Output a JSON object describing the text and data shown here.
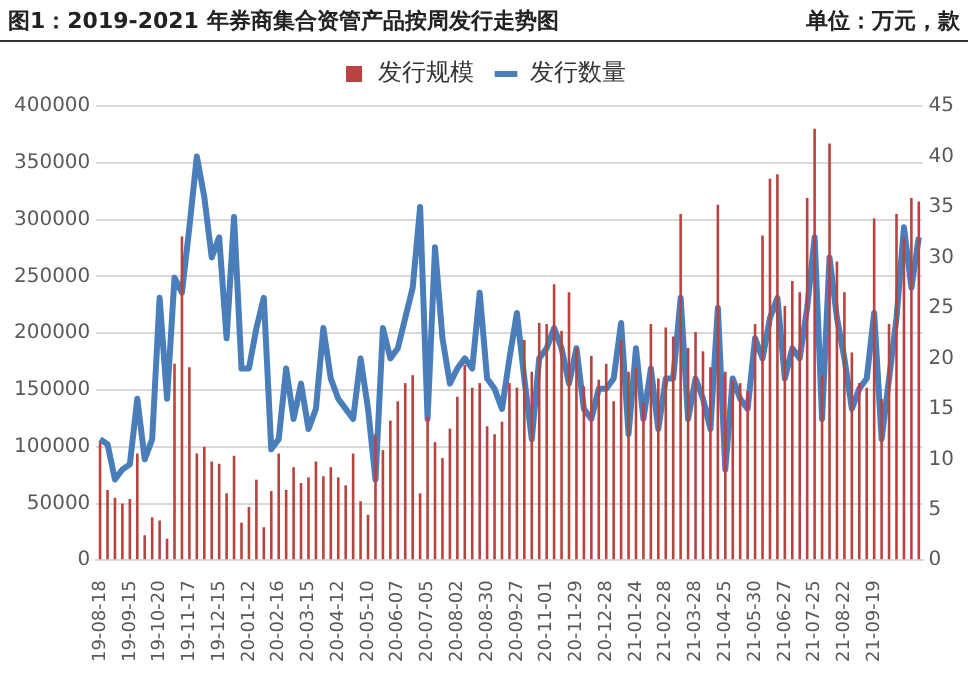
{
  "chart_data": {
    "type": "bar",
    "title": "图1：2019-2021 年券商集合资管产品按周发行走势图",
    "subtitle": "单位：万元，款",
    "categories": [
      "19-08-18",
      null,
      null,
      null,
      "19-09-15",
      null,
      null,
      null,
      "19-10-20",
      null,
      null,
      null,
      "19-11-17",
      null,
      null,
      null,
      "19-12-15",
      null,
      null,
      null,
      "20-01-12",
      null,
      null,
      null,
      "20-02-16",
      null,
      null,
      null,
      "20-03-15",
      null,
      null,
      null,
      "20-04-12",
      null,
      null,
      null,
      "20-05-10",
      null,
      null,
      null,
      "20-06-07",
      null,
      null,
      null,
      "20-07-05",
      null,
      null,
      null,
      "20-08-02",
      null,
      null,
      null,
      "20-08-30",
      null,
      null,
      null,
      "20-09-27",
      null,
      null,
      null,
      "20-11-01",
      null,
      null,
      null,
      "20-11-29",
      null,
      null,
      null,
      "20-12-28",
      null,
      null,
      null,
      "21-01-24",
      null,
      null,
      null,
      "21-02-28",
      null,
      null,
      null,
      "21-03-28",
      null,
      null,
      null,
      "21-04-25",
      null,
      null,
      null,
      "21-05-30",
      null,
      null,
      null,
      "21-06-27",
      null,
      null,
      null,
      "21-07-25",
      null,
      null,
      null,
      "21-08-22",
      null,
      null,
      null,
      "21-09-19",
      null,
      null,
      null,
      null,
      null,
      null
    ],
    "series": [
      {
        "name": "发行规模",
        "type": "bar",
        "color": "#b8433f",
        "values": [
          104000,
          62000,
          55000,
          50000,
          54000,
          94000,
          22000,
          38000,
          35000,
          19000,
          173000,
          285000,
          170000,
          94000,
          100000,
          87000,
          85000,
          59000,
          92000,
          33000,
          47000,
          71000,
          29000,
          61000,
          94000,
          62000,
          82000,
          68000,
          73000,
          87000,
          74000,
          82000,
          73000,
          66000,
          94000,
          52000,
          40000,
          111000,
          97000,
          123000,
          140000,
          156000,
          163000,
          59000,
          126000,
          104000,
          90000,
          116000,
          144000,
          172000,
          152000,
          156000,
          118000,
          111000,
          122000,
          156000,
          152000,
          194000,
          166000,
          209000,
          208000,
          243000,
          202000,
          236000,
          187000,
          153000,
          180000,
          159000,
          173000,
          140000,
          194000,
          166000,
          170000,
          139000,
          208000,
          160000,
          205000,
          197000,
          305000,
          187000,
          201000,
          184000,
          170000,
          313000,
          166000,
          159000,
          156000,
          149000,
          208000,
          286000,
          336000,
          340000,
          224000,
          246000,
          236000,
          319000,
          380000,
          163000,
          367000,
          263000,
          236000,
          183000,
          156000,
          152000,
          301000,
          142000,
          208000,
          305000,
          284000,
          319000,
          316000
        ]
      },
      {
        "name": "发行数量",
        "type": "line",
        "axis": "y2",
        "color": "#4a7ebb",
        "values": [
          12,
          11.5,
          8,
          9,
          9.5,
          16,
          10,
          12,
          26,
          16,
          28,
          26.5,
          33,
          40,
          36,
          30,
          32,
          22,
          34,
          19,
          19,
          23,
          26,
          11,
          12,
          19,
          14,
          17.5,
          13,
          15,
          23,
          18,
          16,
          15,
          14,
          20,
          15,
          8,
          23,
          20,
          21,
          24,
          27,
          35,
          14,
          31,
          22,
          17.5,
          19,
          20,
          19,
          26.5,
          18,
          17,
          15,
          20,
          24.5,
          18,
          12,
          20,
          21,
          23,
          21,
          17.5,
          21,
          15,
          14,
          17,
          17,
          18,
          23.5,
          12.5,
          21,
          14,
          19,
          13,
          18,
          18,
          26,
          14,
          18,
          16,
          13,
          25,
          9,
          18,
          16,
          15,
          22,
          20,
          24,
          26,
          18,
          21,
          20,
          25,
          32,
          14,
          30,
          24,
          20,
          15,
          17,
          18,
          24.5,
          12,
          18,
          24,
          33,
          27,
          32
        ]
      }
    ],
    "ylim": [
      0,
      400000
    ],
    "yticks": [
      0,
      50000,
      100000,
      150000,
      200000,
      250000,
      300000,
      350000,
      400000
    ],
    "y2lim": [
      0,
      45
    ],
    "y2ticks": [
      0,
      5,
      10,
      15,
      20,
      25,
      30,
      35,
      40,
      45
    ],
    "grid": "y",
    "legend": "top",
    "marker": "none",
    "line_style": "solid"
  }
}
